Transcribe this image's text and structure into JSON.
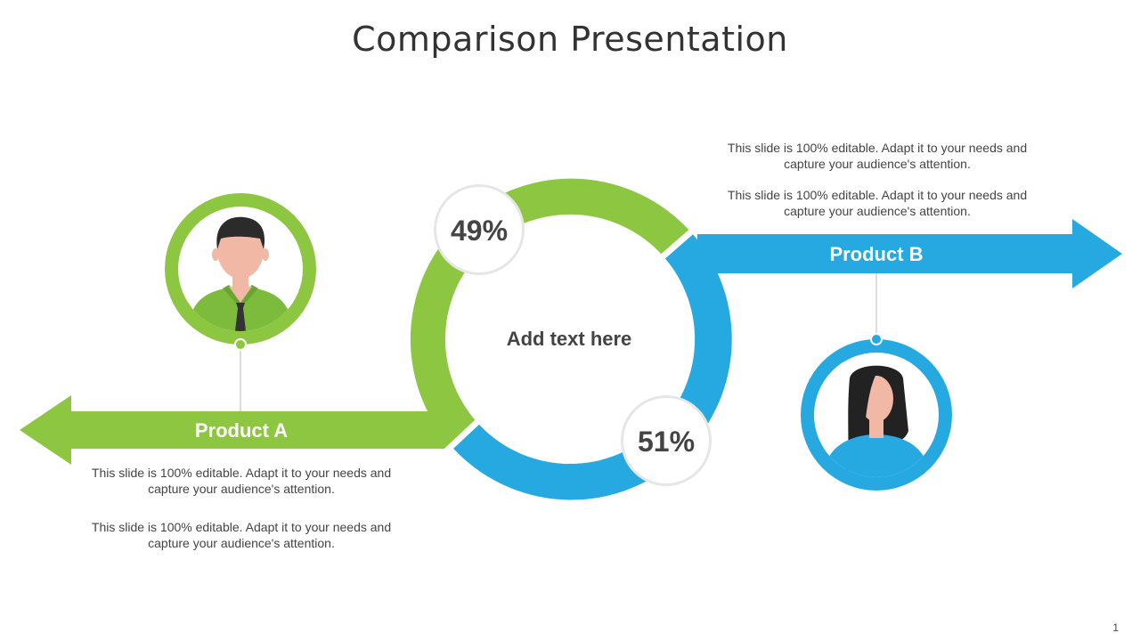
{
  "slide": {
    "title": "Comparison Presentation",
    "page_number": "1"
  },
  "colors": {
    "green": "#8DC641",
    "blue": "#26A9E0",
    "text": "#444444"
  },
  "center": {
    "label": "Add text here"
  },
  "product_a": {
    "label": "Product A",
    "share_label": "49%",
    "share": 49,
    "avatar_icon": "man-avatar-icon",
    "descriptions": [
      "This slide is 100% editable. Adapt it to your needs and capture your audience's attention.",
      "This slide is 100% editable. Adapt it to your needs and capture your audience's attention."
    ]
  },
  "product_b": {
    "label": "Product B",
    "share_label": "51%",
    "share": 51,
    "avatar_icon": "woman-avatar-icon",
    "descriptions": [
      "This slide is 100% editable. Adapt it to your needs and capture your audience's attention.",
      "This slide is 100% editable. Adapt it to your needs and capture your audience's attention."
    ]
  }
}
